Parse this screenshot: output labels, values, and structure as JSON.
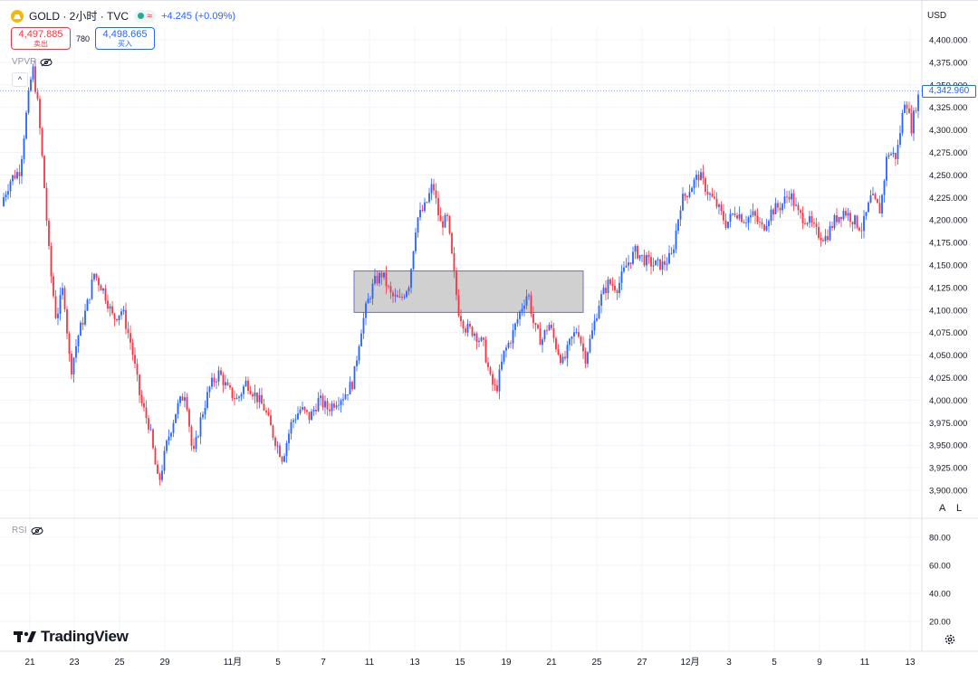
{
  "header": {
    "symbol": "GOLD · 2小时 · TVC",
    "change": "+4.245 (+0.09%)"
  },
  "trade": {
    "sell_price": "4,497.885",
    "sell_label": "卖出",
    "spread": "780",
    "buy_price": "4,498.665",
    "buy_label": "买入"
  },
  "indicators": {
    "vpvr": "VPVR",
    "rsi": "RSI"
  },
  "price_axis": {
    "currency": "USD",
    "last_price": "4,342.960",
    "mode_a": "A",
    "mode_l": "L"
  },
  "brand": {
    "name": "TradingView"
  },
  "colors": {
    "up": "#2962ff",
    "down": "#f23645",
    "box_fill": "#c8c8c8",
    "box_stroke": "#6a6fd0",
    "accent": "#2962ff"
  },
  "chart_data": {
    "type": "candlestick",
    "ylim": [
      3880,
      4410
    ],
    "price_ticks": [
      "4,400.000",
      "4,375.000",
      "4,350.000",
      "4,325.000",
      "4,300.000",
      "4,275.000",
      "4,250.000",
      "4,225.000",
      "4,200.000",
      "4,175.000",
      "4,150.000",
      "4,125.000",
      "4,100.000",
      "4,075.000",
      "4,050.000",
      "4,025.000",
      "4,000.000",
      "3,975.000",
      "3,950.000",
      "3,925.000",
      "3,900.000"
    ],
    "rsi_ticks": [
      "80.00",
      "60.00",
      "40.00",
      "20.00"
    ],
    "date_ticks": [
      "21",
      "23",
      "25",
      "29",
      "11月",
      "5",
      "7",
      "11",
      "13",
      "15",
      "19",
      "21",
      "25",
      "27",
      "12月",
      "3",
      "5",
      "9",
      "11",
      "13"
    ],
    "zone": {
      "start_date": "10",
      "end_date": "23",
      "high": 4143,
      "low": 4097
    },
    "close_path": [
      {
        "x": 0,
        "y": 4215
      },
      {
        "x": 12,
        "y": 4245
      },
      {
        "x": 22,
        "y": 4255
      },
      {
        "x": 30,
        "y": 4325
      },
      {
        "x": 36,
        "y": 4370
      },
      {
        "x": 42,
        "y": 4325
      },
      {
        "x": 48,
        "y": 4250
      },
      {
        "x": 55,
        "y": 4150
      },
      {
        "x": 62,
        "y": 4090
      },
      {
        "x": 70,
        "y": 4125
      },
      {
        "x": 78,
        "y": 4030
      },
      {
        "x": 86,
        "y": 4070
      },
      {
        "x": 95,
        "y": 4100
      },
      {
        "x": 104,
        "y": 4140
      },
      {
        "x": 115,
        "y": 4120
      },
      {
        "x": 125,
        "y": 4090
      },
      {
        "x": 135,
        "y": 4100
      },
      {
        "x": 145,
        "y": 4060
      },
      {
        "x": 155,
        "y": 4000
      },
      {
        "x": 165,
        "y": 3970
      },
      {
        "x": 175,
        "y": 3905
      },
      {
        "x": 185,
        "y": 3955
      },
      {
        "x": 195,
        "y": 3990
      },
      {
        "x": 205,
        "y": 4010
      },
      {
        "x": 213,
        "y": 3935
      },
      {
        "x": 222,
        "y": 3980
      },
      {
        "x": 232,
        "y": 4015
      },
      {
        "x": 242,
        "y": 4030
      },
      {
        "x": 252,
        "y": 4010
      },
      {
        "x": 262,
        "y": 4000
      },
      {
        "x": 272,
        "y": 4020
      },
      {
        "x": 282,
        "y": 4005
      },
      {
        "x": 292,
        "y": 3990
      },
      {
        "x": 302,
        "y": 3960
      },
      {
        "x": 312,
        "y": 3935
      },
      {
        "x": 322,
        "y": 3975
      },
      {
        "x": 332,
        "y": 3990
      },
      {
        "x": 342,
        "y": 3980
      },
      {
        "x": 352,
        "y": 4000
      },
      {
        "x": 362,
        "y": 3990
      },
      {
        "x": 372,
        "y": 4000
      },
      {
        "x": 380,
        "y": 4005
      },
      {
        "x": 390,
        "y": 4020
      },
      {
        "x": 398,
        "y": 4075
      },
      {
        "x": 405,
        "y": 4105
      },
      {
        "x": 413,
        "y": 4130
      },
      {
        "x": 422,
        "y": 4140
      },
      {
        "x": 432,
        "y": 4115
      },
      {
        "x": 442,
        "y": 4110
      },
      {
        "x": 452,
        "y": 4130
      },
      {
        "x": 460,
        "y": 4200
      },
      {
        "x": 470,
        "y": 4215
      },
      {
        "x": 478,
        "y": 4240
      },
      {
        "x": 486,
        "y": 4195
      },
      {
        "x": 494,
        "y": 4200
      },
      {
        "x": 500,
        "y": 4150
      },
      {
        "x": 506,
        "y": 4100
      },
      {
        "x": 514,
        "y": 4080
      },
      {
        "x": 524,
        "y": 4075
      },
      {
        "x": 534,
        "y": 4060
      },
      {
        "x": 542,
        "y": 4020
      },
      {
        "x": 548,
        "y": 4010
      },
      {
        "x": 556,
        "y": 4050
      },
      {
        "x": 565,
        "y": 4070
      },
      {
        "x": 575,
        "y": 4100
      },
      {
        "x": 583,
        "y": 4120
      },
      {
        "x": 590,
        "y": 4080
      },
      {
        "x": 598,
        "y": 4065
      },
      {
        "x": 606,
        "y": 4085
      },
      {
        "x": 614,
        "y": 4060
      },
      {
        "x": 622,
        "y": 4040
      },
      {
        "x": 630,
        "y": 4065
      },
      {
        "x": 638,
        "y": 4080
      },
      {
        "x": 646,
        "y": 4045
      },
      {
        "x": 654,
        "y": 4075
      },
      {
        "x": 662,
        "y": 4110
      },
      {
        "x": 672,
        "y": 4130
      },
      {
        "x": 682,
        "y": 4125
      },
      {
        "x": 692,
        "y": 4150
      },
      {
        "x": 702,
        "y": 4165
      },
      {
        "x": 712,
        "y": 4155
      },
      {
        "x": 722,
        "y": 4150
      },
      {
        "x": 732,
        "y": 4150
      },
      {
        "x": 742,
        "y": 4160
      },
      {
        "x": 752,
        "y": 4220
      },
      {
        "x": 762,
        "y": 4235
      },
      {
        "x": 772,
        "y": 4250
      },
      {
        "x": 782,
        "y": 4230
      },
      {
        "x": 792,
        "y": 4215
      },
      {
        "x": 802,
        "y": 4195
      },
      {
        "x": 812,
        "y": 4210
      },
      {
        "x": 822,
        "y": 4200
      },
      {
        "x": 832,
        "y": 4205
      },
      {
        "x": 842,
        "y": 4190
      },
      {
        "x": 852,
        "y": 4210
      },
      {
        "x": 862,
        "y": 4215
      },
      {
        "x": 872,
        "y": 4230
      },
      {
        "x": 882,
        "y": 4205
      },
      {
        "x": 892,
        "y": 4200
      },
      {
        "x": 902,
        "y": 4185
      },
      {
        "x": 912,
        "y": 4180
      },
      {
        "x": 922,
        "y": 4200
      },
      {
        "x": 932,
        "y": 4210
      },
      {
        "x": 942,
        "y": 4200
      },
      {
        "x": 952,
        "y": 4190
      },
      {
        "x": 962,
        "y": 4225
      },
      {
        "x": 972,
        "y": 4210
      },
      {
        "x": 980,
        "y": 4275
      },
      {
        "x": 990,
        "y": 4270
      },
      {
        "x": 1000,
        "y": 4340
      },
      {
        "x": 1006,
        "y": 4300
      },
      {
        "x": 1012,
        "y": 4330
      },
      {
        "x": 1016,
        "y": 4343
      }
    ]
  }
}
